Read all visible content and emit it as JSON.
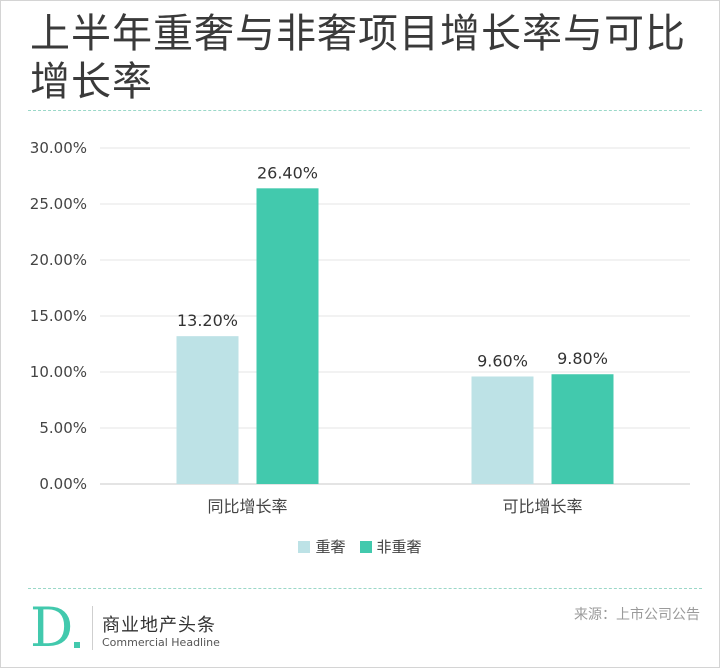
{
  "title": "上半年重奢与非奢项目增长率与可比增长率",
  "brand": {
    "name_cn": "商业地产头条",
    "name_en": "Commercial Headline",
    "logo_letter": "D"
  },
  "source": "来源：上市公司公告",
  "colors": {
    "series1": "#bde2e6",
    "series2": "#42c9ad",
    "accent": "#42c9ad",
    "grid": "#e6e6e6"
  },
  "chart_data": {
    "type": "bar",
    "categories": [
      "同比增长率",
      "可比增长率"
    ],
    "series": [
      {
        "name": "重奢",
        "values": [
          13.2,
          9.6
        ],
        "labels": [
          "13.20%",
          "9.60%"
        ]
      },
      {
        "name": "非重奢",
        "values": [
          26.4,
          9.8
        ],
        "labels": [
          "26.40%",
          "9.80%"
        ]
      }
    ],
    "yticks": [
      "0.00%",
      "5.00%",
      "10.00%",
      "15.00%",
      "20.00%",
      "25.00%",
      "30.00%"
    ],
    "ylim": [
      0,
      30
    ],
    "grid": true,
    "legend": "bottom"
  }
}
